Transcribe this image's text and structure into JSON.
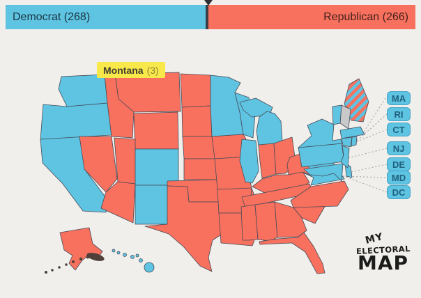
{
  "colors": {
    "democrat": "#5ec4e2",
    "republican": "#f8705e",
    "undecided": "#c9c9c9",
    "background": "#f0efec",
    "state_border": "#464b57",
    "tooltip_bg": "#f9e84a",
    "chip_text": "#1f5f7d",
    "leader_line": "#aaaaaa"
  },
  "bar": {
    "democrat_label": "Democrat (268)",
    "democrat_party": "Democrat",
    "democrat_votes": 268,
    "republican_label": "Republican (266)",
    "republican_party": "Republican",
    "republican_votes": 266
  },
  "tooltip": {
    "state": "Montana",
    "votes_label": "(3)",
    "votes": 3
  },
  "east_coast_labels": [
    {
      "abbr": "MA",
      "party": "democrat"
    },
    {
      "abbr": "RI",
      "party": "democrat"
    },
    {
      "abbr": "CT",
      "party": "democrat"
    },
    {
      "abbr": "NJ",
      "party": "democrat"
    },
    {
      "abbr": "DE",
      "party": "democrat"
    },
    {
      "abbr": "MD",
      "party": "democrat"
    },
    {
      "abbr": "DC",
      "party": "democrat"
    }
  ],
  "logo": {
    "line1": "MY",
    "line2": "ELECTORAL",
    "line3": "MAP"
  },
  "map": {
    "states": [
      {
        "id": "CA",
        "party": "democrat"
      },
      {
        "id": "OR",
        "party": "democrat"
      },
      {
        "id": "WA",
        "party": "democrat"
      },
      {
        "id": "ID",
        "party": "republican"
      },
      {
        "id": "MT",
        "party": "republican"
      },
      {
        "id": "WY",
        "party": "republican"
      },
      {
        "id": "NV",
        "party": "republican"
      },
      {
        "id": "UT",
        "party": "republican"
      },
      {
        "id": "CO",
        "party": "democrat"
      },
      {
        "id": "AZ",
        "party": "republican"
      },
      {
        "id": "NM",
        "party": "democrat"
      },
      {
        "id": "ND",
        "party": "republican"
      },
      {
        "id": "SD",
        "party": "republican"
      },
      {
        "id": "NE",
        "party": "republican"
      },
      {
        "id": "KS",
        "party": "republican"
      },
      {
        "id": "OK",
        "party": "republican"
      },
      {
        "id": "TX",
        "party": "republican"
      },
      {
        "id": "MN",
        "party": "democrat"
      },
      {
        "id": "IA",
        "party": "republican"
      },
      {
        "id": "MO",
        "party": "republican"
      },
      {
        "id": "AR",
        "party": "republican"
      },
      {
        "id": "LA",
        "party": "republican"
      },
      {
        "id": "WI",
        "party": "democrat"
      },
      {
        "id": "MI",
        "party": "democrat"
      },
      {
        "id": "IL",
        "party": "democrat"
      },
      {
        "id": "IN",
        "party": "republican"
      },
      {
        "id": "OH",
        "party": "republican"
      },
      {
        "id": "KY",
        "party": "republican"
      },
      {
        "id": "TN",
        "party": "republican"
      },
      {
        "id": "MS",
        "party": "republican"
      },
      {
        "id": "AL",
        "party": "republican"
      },
      {
        "id": "GA",
        "party": "republican"
      },
      {
        "id": "FL",
        "party": "republican"
      },
      {
        "id": "SC",
        "party": "republican"
      },
      {
        "id": "NC",
        "party": "republican"
      },
      {
        "id": "VA",
        "party": "democrat"
      },
      {
        "id": "WV",
        "party": "republican"
      },
      {
        "id": "MD",
        "party": "democrat"
      },
      {
        "id": "DE",
        "party": "democrat"
      },
      {
        "id": "PA",
        "party": "democrat"
      },
      {
        "id": "NY",
        "party": "democrat"
      },
      {
        "id": "NJ",
        "party": "democrat"
      },
      {
        "id": "ME",
        "party": "split"
      },
      {
        "id": "NH",
        "party": "undecided"
      },
      {
        "id": "VT",
        "party": "democrat"
      },
      {
        "id": "MA",
        "party": "democrat"
      },
      {
        "id": "RI",
        "party": "democrat"
      },
      {
        "id": "CT",
        "party": "democrat"
      },
      {
        "id": "AK",
        "party": "republican"
      },
      {
        "id": "HI",
        "party": "democrat"
      }
    ]
  }
}
